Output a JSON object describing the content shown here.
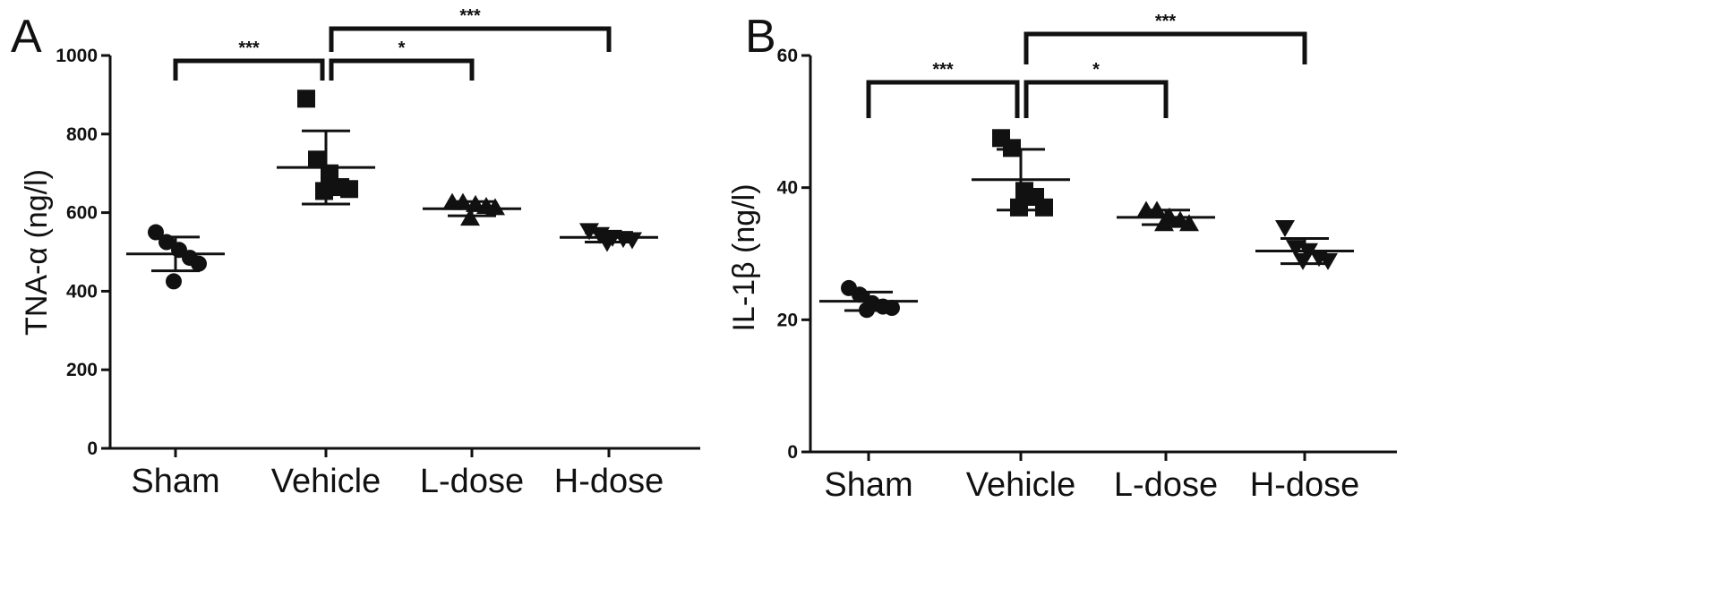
{
  "chart_data": [
    {
      "type": "scatter",
      "panel_label": "A",
      "ylabel": "TNA-α (ng/l)",
      "xlabel": "",
      "ylim": [
        0,
        1000
      ],
      "yticks": [
        0,
        200,
        400,
        600,
        800,
        1000
      ],
      "grid": false,
      "categories": [
        "Sham",
        "Vehicle",
        "L-dose",
        "H-dose"
      ],
      "series": [
        {
          "category": "Sham",
          "marker": "circle",
          "points": [
            550,
            525,
            505,
            485,
            470,
            425
          ],
          "mean": 495,
          "sd": 43
        },
        {
          "category": "Vehicle",
          "marker": "square",
          "points": [
            890,
            735,
            700,
            665,
            660,
            655
          ],
          "mean": 715,
          "sd": 93
        },
        {
          "category": "L-dose",
          "marker": "triangle-up",
          "points": [
            625,
            625,
            620,
            615,
            612,
            585
          ],
          "mean": 610,
          "sd": 18
        },
        {
          "category": "H-dose",
          "marker": "triangle-down",
          "points": [
            555,
            545,
            538,
            535,
            532,
            525
          ],
          "mean": 537,
          "sd": 12
        }
      ],
      "significance": [
        {
          "from": "Sham",
          "to": "Vehicle",
          "label": "***"
        },
        {
          "from": "Vehicle",
          "to": "L-dose",
          "label": "*"
        },
        {
          "from": "Vehicle",
          "to": "H-dose",
          "label": "***"
        }
      ]
    },
    {
      "type": "scatter",
      "panel_label": "B",
      "ylabel": "IL-1β (ng/l)",
      "xlabel": "",
      "ylim": [
        0,
        60
      ],
      "yticks": [
        0,
        20,
        40,
        60
      ],
      "grid": false,
      "categories": [
        "Sham",
        "Vehicle",
        "L-dose",
        "H-dose"
      ],
      "series": [
        {
          "category": "Sham",
          "marker": "circle",
          "points": [
            24.8,
            23.8,
            22.5,
            22.0,
            21.8,
            21.5
          ],
          "mean": 22.8,
          "sd": 1.4
        },
        {
          "category": "Vehicle",
          "marker": "square",
          "points": [
            47.5,
            46.0,
            39.5,
            38.6,
            37.0,
            37.0
          ],
          "mean": 41.2,
          "sd": 4.6
        },
        {
          "category": "L-dose",
          "marker": "triangle-up",
          "points": [
            36.5,
            36.5,
            35.5,
            35.0,
            34.5,
            34.5
          ],
          "mean": 35.5,
          "sd": 1.1
        },
        {
          "category": "H-dose",
          "marker": "triangle-down",
          "points": [
            34.0,
            31.0,
            30.5,
            29.5,
            29.0,
            29.0
          ],
          "mean": 30.4,
          "sd": 1.9
        }
      ],
      "significance": [
        {
          "from": "Sham",
          "to": "Vehicle",
          "label": "***"
        },
        {
          "from": "Vehicle",
          "to": "L-dose",
          "label": "*"
        },
        {
          "from": "Vehicle",
          "to": "H-dose",
          "label": "***"
        }
      ]
    }
  ]
}
